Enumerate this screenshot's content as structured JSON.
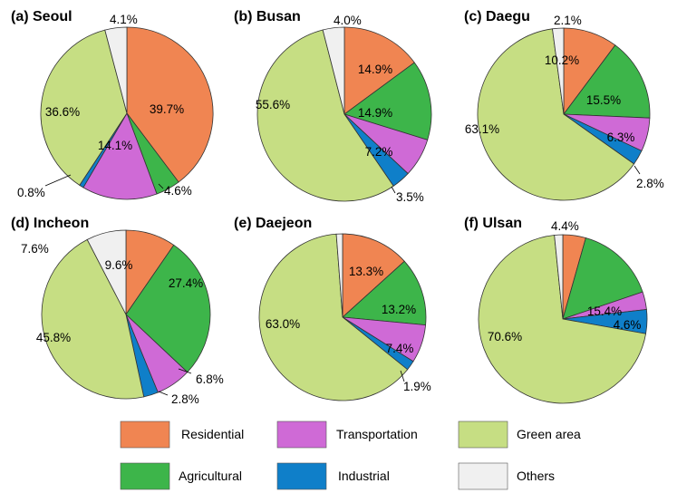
{
  "colors": {
    "Residential": "#f08552",
    "Agricultural": "#3db54a",
    "Transportation": "#cf6ad6",
    "Industrial": "#0f7fc9",
    "Green area": "#c6de83",
    "Others": "#f0f0f0"
  },
  "legend": [
    "Residential",
    "Transportation",
    "Green area",
    "Agricultural",
    "Industrial",
    "Others"
  ],
  "chart_data": [
    {
      "type": "pie",
      "title": "(a) Seoul",
      "slices": [
        {
          "category": "Residential",
          "value": 39.7,
          "label": "39.7%"
        },
        {
          "category": "Agricultural",
          "value": 4.6,
          "label": "4.6%"
        },
        {
          "category": "Transportation",
          "value": 14.1,
          "label": "14.1%"
        },
        {
          "category": "Industrial",
          "value": 0.8,
          "label": "0.8%"
        },
        {
          "category": "Green area",
          "value": 36.6,
          "label": "36.6%"
        },
        {
          "category": "Others",
          "value": 4.1,
          "label": "4.1%"
        }
      ]
    },
    {
      "type": "pie",
      "title": "(b) Busan",
      "slices": [
        {
          "category": "Residential",
          "value": 14.9,
          "label": "14.9%"
        },
        {
          "category": "Agricultural",
          "value": 14.9,
          "label": "14.9%"
        },
        {
          "category": "Transportation",
          "value": 7.2,
          "label": "7.2%"
        },
        {
          "category": "Industrial",
          "value": 3.5,
          "label": "3.5%"
        },
        {
          "category": "Green area",
          "value": 55.6,
          "label": "55.6%"
        },
        {
          "category": "Others",
          "value": 4.0,
          "label": "4.0%"
        }
      ]
    },
    {
      "type": "pie",
      "title": "(c) Daegu",
      "slices": [
        {
          "category": "Residential",
          "value": 10.2,
          "label": "10.2%"
        },
        {
          "category": "Agricultural",
          "value": 15.5,
          "label": "15.5%"
        },
        {
          "category": "Transportation",
          "value": 6.3,
          "label": "6.3%"
        },
        {
          "category": "Industrial",
          "value": 2.8,
          "label": "2.8%"
        },
        {
          "category": "Green area",
          "value": 63.1,
          "label": "63.1%"
        },
        {
          "category": "Others",
          "value": 2.1,
          "label": "2.1%"
        }
      ]
    },
    {
      "type": "pie",
      "title": "(d) Incheon",
      "slices": [
        {
          "category": "Residential",
          "value": 9.6,
          "label": "9.6%"
        },
        {
          "category": "Agricultural",
          "value": 27.4,
          "label": "27.4%"
        },
        {
          "category": "Transportation",
          "value": 6.8,
          "label": "6.8%"
        },
        {
          "category": "Industrial",
          "value": 2.8,
          "label": "2.8%"
        },
        {
          "category": "Green area",
          "value": 45.8,
          "label": "45.8%"
        },
        {
          "category": "Others",
          "value": 7.6,
          "label": "7.6%"
        }
      ]
    },
    {
      "type": "pie",
      "title": "(e) Daejeon",
      "slices": [
        {
          "category": "Residential",
          "value": 13.3,
          "label": "13.3%"
        },
        {
          "category": "Agricultural",
          "value": 13.2,
          "label": "13.2%"
        },
        {
          "category": "Transportation",
          "value": 7.4,
          "label": "7.4%"
        },
        {
          "category": "Industrial",
          "value": 1.9,
          "label": "1.9%"
        },
        {
          "category": "Green area",
          "value": 63.0,
          "label": "63.0%"
        },
        {
          "category": "Others",
          "value": 1.2,
          "label": ""
        }
      ]
    },
    {
      "type": "pie",
      "title": "(f) Ulsan",
      "slices": [
        {
          "category": "Residential",
          "value": 4.4,
          "label": "4.4%"
        },
        {
          "category": "Agricultural",
          "value": 15.4,
          "label": "15.4%"
        },
        {
          "category": "Transportation",
          "value": 3.4,
          "label": ""
        },
        {
          "category": "Industrial",
          "value": 4.6,
          "label": "4.6%"
        },
        {
          "category": "Green area",
          "value": 70.6,
          "label": "70.6%"
        },
        {
          "category": "Others",
          "value": 1.6,
          "label": ""
        }
      ]
    }
  ]
}
